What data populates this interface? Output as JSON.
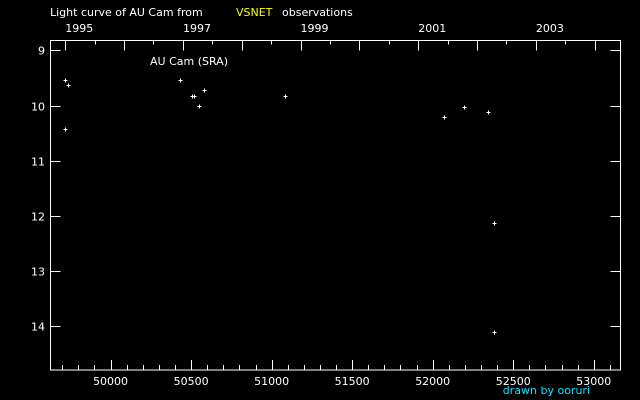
{
  "chart_data": {
    "type": "scatter",
    "title_prefix": "Light curve of AU Cam from",
    "title_source": "VSNET",
    "title_suffix": "observations",
    "series_label": "AU Cam (SRA)",
    "credit": "drawn by ooruri",
    "xlim": [
      49627,
      53166
    ],
    "ylim": [
      8.82,
      14.79
    ],
    "y_inverted": true,
    "x_ticks": [
      50000,
      50500,
      51000,
      51500,
      52000,
      52500,
      53000
    ],
    "x_tick_labels": [
      "50000",
      "50500",
      "51000",
      "51500",
      "52000",
      "52500",
      "53000"
    ],
    "y_ticks": [
      9,
      10,
      11,
      12,
      13,
      14
    ],
    "y_tick_labels": [
      "9",
      "10",
      "11",
      "12",
      "13",
      "14"
    ],
    "top_axis_years": [
      1995,
      1996,
      1997,
      1998,
      1999,
      2000,
      2001,
      2002,
      2003,
      2004
    ],
    "top_axis_labels": [
      "1995",
      "1997",
      "1999",
      "2001",
      "2003"
    ],
    "points": [
      {
        "x": 49720,
        "y": 9.53
      },
      {
        "x": 49733,
        "y": 9.62
      },
      {
        "x": 49720,
        "y": 10.42
      },
      {
        "x": 50434,
        "y": 9.53
      },
      {
        "x": 50506,
        "y": 9.82
      },
      {
        "x": 50519,
        "y": 9.82
      },
      {
        "x": 50577,
        "y": 9.72
      },
      {
        "x": 50552,
        "y": 10.01
      },
      {
        "x": 51085,
        "y": 9.82
      },
      {
        "x": 52068,
        "y": 10.21
      },
      {
        "x": 52197,
        "y": 10.02
      },
      {
        "x": 52346,
        "y": 10.12
      },
      {
        "x": 52378,
        "y": 12.12
      },
      {
        "x": 52378,
        "y": 14.11
      }
    ],
    "colors": {
      "background": "#000000",
      "axes": "#ffffff",
      "source": "#ffff00",
      "credit": "#00e5ff"
    }
  }
}
